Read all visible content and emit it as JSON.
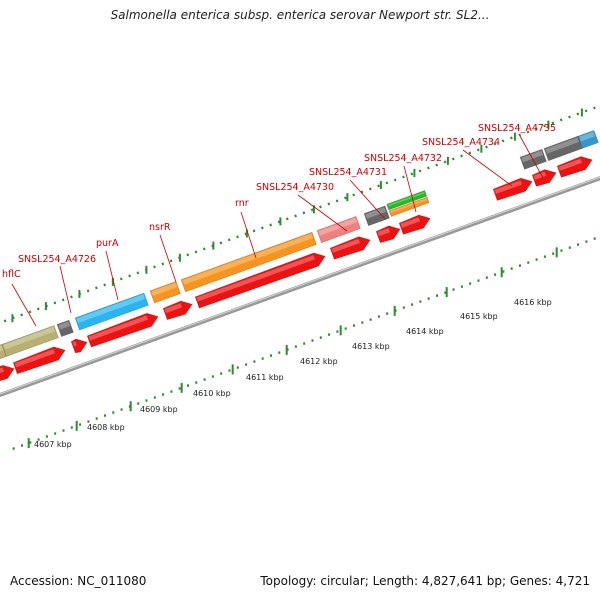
{
  "title": "Salmonella enterica subsp. enterica serovar Newport str. SL2...",
  "footer": {
    "accession": "Accession: NC_011080",
    "summary": "Topology: circular; Length: 4,827,641 bp; Genes: 4,721"
  },
  "colors": {
    "forward_red": "#ee1111",
    "olive": "#b8b070",
    "dark_gray": "#666666",
    "cyan": "#29b6f0",
    "orange": "#f7941d",
    "pink": "#f08080",
    "green": "#22bb22",
    "blue": "#3399cc",
    "label_red": "#cc0000",
    "tick_green": "#2e8b2e",
    "backbone": "#888888"
  },
  "gene_labels": [
    {
      "text": "hflC"
    },
    {
      "text": "SNSL254_A4726"
    },
    {
      "text": "purA"
    },
    {
      "text": "nsrR"
    },
    {
      "text": "rnr"
    },
    {
      "text": "SNSL254_A4730"
    },
    {
      "text": "SNSL254_A4731"
    },
    {
      "text": "SNSL254_A4732"
    },
    {
      "text": "SNSL254_A4734"
    },
    {
      "text": "SNSL254_A4735"
    }
  ],
  "kbp_labels": [
    {
      "text": "4607 kbp"
    },
    {
      "text": "4608 kbp"
    },
    {
      "text": "4609 kbp"
    },
    {
      "text": "4610 kbp"
    },
    {
      "text": "4611 kbp"
    },
    {
      "text": "4612 kbp"
    },
    {
      "text": "4613 kbp"
    },
    {
      "text": "4614 kbp"
    },
    {
      "text": "4615 kbp"
    },
    {
      "text": "4616 kbp"
    }
  ]
}
